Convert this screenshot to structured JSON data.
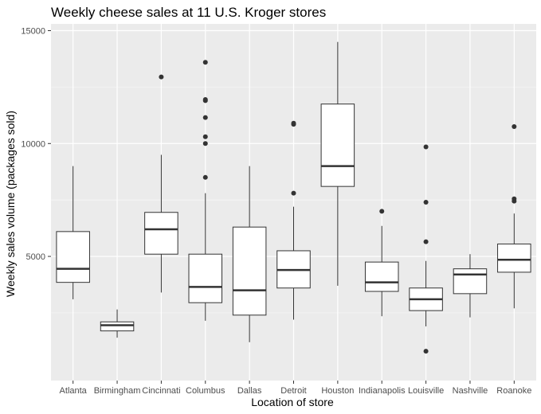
{
  "chart_data": {
    "type": "boxplot",
    "title": "Weekly cheese sales at 11 U.S. Kroger stores",
    "xlabel": "Location of store",
    "ylabel": "Weekly sales volume (packages sold)",
    "ylim": [
      -500,
      15300
    ],
    "yticks": [
      5000,
      10000,
      15000
    ],
    "grid": true,
    "legend": "none",
    "colors": {
      "panel": "#ebebeb",
      "grid_major": "#ffffff",
      "grid_minor": "#f5f5f5",
      "box_fill": "#ffffff",
      "line": "#333333",
      "tick": "#333333",
      "tick_text": "#4d4d4d"
    },
    "categories": [
      "Atlanta",
      "Birmingham",
      "Cincinnati",
      "Columbus",
      "Dallas",
      "Detroit",
      "Houston",
      "Indianapolis",
      "Louisville",
      "Nashville",
      "Roanoke"
    ],
    "boxes": [
      {
        "category": "Atlanta",
        "min": 3100,
        "q1": 3850,
        "median": 4450,
        "q3": 6100,
        "max": 9000,
        "outliers": []
      },
      {
        "category": "Birmingham",
        "min": 1400,
        "q1": 1700,
        "median": 1950,
        "q3": 2100,
        "max": 2650,
        "outliers": []
      },
      {
        "category": "Cincinnati",
        "min": 3400,
        "q1": 5100,
        "median": 6200,
        "q3": 6950,
        "max": 9500,
        "outliers": [
          12950
        ]
      },
      {
        "category": "Columbus",
        "min": 2150,
        "q1": 2950,
        "median": 3650,
        "q3": 5100,
        "max": 7800,
        "outliers": [
          8500,
          10000,
          10300,
          11150,
          11900,
          11950,
          13600
        ]
      },
      {
        "category": "Dallas",
        "min": 1200,
        "q1": 2400,
        "median": 3500,
        "q3": 6300,
        "max": 9000,
        "outliers": []
      },
      {
        "category": "Detroit",
        "min": 2200,
        "q1": 3600,
        "median": 4400,
        "q3": 5250,
        "max": 7200,
        "outliers": [
          7800,
          10850,
          10900
        ]
      },
      {
        "category": "Houston",
        "min": 3700,
        "q1": 8100,
        "median": 9000,
        "q3": 11750,
        "max": 14500,
        "outliers": []
      },
      {
        "category": "Indianapolis",
        "min": 2350,
        "q1": 3450,
        "median": 3850,
        "q3": 4750,
        "max": 6350,
        "outliers": [
          7000
        ]
      },
      {
        "category": "Louisville",
        "min": 1900,
        "q1": 2600,
        "median": 3100,
        "q3": 3600,
        "max": 4800,
        "outliers": [
          800,
          5650,
          7400,
          9850
        ]
      },
      {
        "category": "Nashville",
        "min": 2300,
        "q1": 3350,
        "median": 4200,
        "q3": 4450,
        "max": 5100,
        "outliers": []
      },
      {
        "category": "Roanoke",
        "min": 2700,
        "q1": 4300,
        "median": 4850,
        "q3": 5550,
        "max": 6900,
        "outliers": [
          7450,
          7550,
          10750
        ]
      }
    ]
  }
}
